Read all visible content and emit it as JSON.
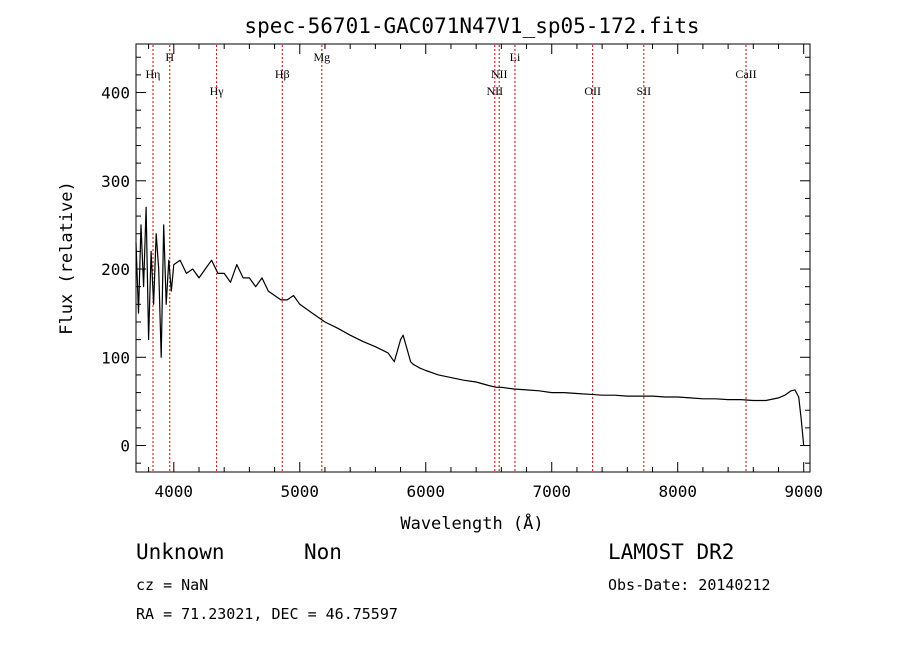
{
  "chart_data": {
    "type": "line",
    "title": "spec-56701-GAC071N47V1_sp05-172.fits",
    "xlabel": "Wavelength (Å)",
    "ylabel": "Flux (relative)",
    "xlim": [
      3700,
      9050
    ],
    "ylim": [
      -30,
      455
    ],
    "xticks": [
      4000,
      5000,
      6000,
      7000,
      8000,
      9000
    ],
    "yticks": [
      0,
      100,
      200,
      300,
      400
    ],
    "line_color": "#000000",
    "marker_color": "#cc0000",
    "series": [
      {
        "x": [
          3700,
          3720,
          3740,
          3760,
          3780,
          3800,
          3820,
          3840,
          3860,
          3880,
          3900,
          3920,
          3940,
          3960,
          3980,
          4000,
          4050,
          4100,
          4150,
          4200,
          4250,
          4300,
          4350,
          4400,
          4450,
          4500,
          4550,
          4600,
          4650,
          4700,
          4750,
          4800,
          4850,
          4900,
          4950,
          5000,
          5050,
          5100,
          5150,
          5200,
          5300,
          5400,
          5500,
          5600,
          5700,
          5750,
          5800,
          5820,
          5850,
          5880,
          5900,
          5950,
          6000,
          6100,
          6200,
          6300,
          6400,
          6500,
          6560,
          6600,
          6700,
          6800,
          6900,
          7000,
          7100,
          7200,
          7300,
          7400,
          7500,
          7600,
          7700,
          7800,
          7900,
          8000,
          8100,
          8200,
          8300,
          8400,
          8500,
          8600,
          8700,
          8800,
          8850,
          8900,
          8930,
          8960,
          8980,
          9000
        ],
        "y": [
          230,
          150,
          250,
          180,
          270,
          120,
          220,
          160,
          240,
          200,
          100,
          250,
          160,
          210,
          175,
          205,
          210,
          195,
          200,
          190,
          200,
          210,
          195,
          195,
          185,
          205,
          190,
          190,
          180,
          190,
          175,
          170,
          165,
          165,
          170,
          160,
          155,
          150,
          145,
          140,
          133,
          125,
          118,
          112,
          105,
          95,
          120,
          125,
          110,
          95,
          92,
          88,
          85,
          80,
          77,
          74,
          72,
          68,
          66,
          66,
          64,
          63,
          62,
          60,
          60,
          59,
          58,
          57,
          57,
          56,
          56,
          56,
          55,
          55,
          54,
          53,
          53,
          52,
          52,
          51,
          51,
          54,
          57,
          62,
          63,
          55,
          30,
          0
        ]
      }
    ],
    "lines": [
      {
        "label": "Hη",
        "x": 3835,
        "row": 2
      },
      {
        "label": "H",
        "x": 3968,
        "row": 1
      },
      {
        "label": "Hγ",
        "x": 4340,
        "row": 3
      },
      {
        "label": "Hβ",
        "x": 4861,
        "row": 2
      },
      {
        "label": "Mg",
        "x": 5175,
        "row": 1
      },
      {
        "label": "NII",
        "x": 6548,
        "row": 3
      },
      {
        "label": "NII",
        "x": 6583,
        "row": 2
      },
      {
        "label": "Li",
        "x": 6708,
        "row": 1
      },
      {
        "label": "OII",
        "x": 7325,
        "row": 3
      },
      {
        "label": "SII",
        "x": 7731,
        "row": 3
      },
      {
        "label": "CaII",
        "x": 8542,
        "row": 2
      }
    ]
  },
  "info": {
    "class": "Unknown",
    "subclass": "Non",
    "survey": "LAMOST DR2",
    "cz": "cz = NaN",
    "obs_date": "Obs-Date: 20140212",
    "coords": "RA =  71.23021, DEC =  46.75597"
  }
}
